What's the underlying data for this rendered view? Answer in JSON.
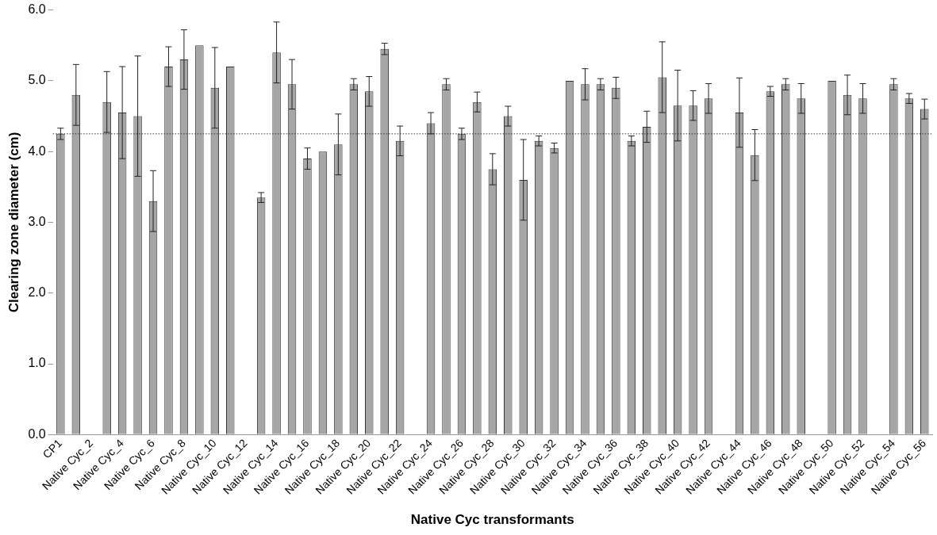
{
  "chart_data": {
    "type": "bar",
    "xlabel": "Native Cyc transformants",
    "ylabel": "Clearing zone diameter (cm)",
    "categories": [
      "CP1",
      null,
      "Native Cyc_2",
      null,
      "Native Cyc_4",
      null,
      "Native Cyc_6",
      null,
      "Native Cyc_8",
      null,
      "Native Cyc_10",
      null,
      "Native Cyc_12",
      null,
      "Native Cyc_14",
      null,
      "Native Cyc_16",
      null,
      "Native Cyc_18",
      null,
      "Native Cyc_20",
      null,
      "Native Cyc_22",
      null,
      "Native Cyc_24",
      null,
      "Native Cyc_26",
      null,
      "Native Cyc_28",
      null,
      "Native Cyc_30",
      null,
      "Native Cyc_32",
      null,
      "Native Cyc_34",
      null,
      "Native Cyc_36",
      null,
      "Native Cyc_38",
      null,
      "Native Cyc_40",
      null,
      "Native Cyc_42",
      null,
      "Native Cyc_44",
      null,
      "Native Cyc_46",
      null,
      "Native Cyc_48",
      null,
      "Native Cyc_50",
      null,
      "Native Cyc_52",
      null,
      "Native Cyc_54",
      null,
      "Native Cyc_56"
    ],
    "values": [
      4.25,
      4.8,
      0,
      4.7,
      4.55,
      4.5,
      3.3,
      5.2,
      5.3,
      5.5,
      4.9,
      5.2,
      0,
      3.35,
      5.4,
      4.95,
      3.9,
      4.0,
      4.1,
      4.95,
      4.85,
      5.45,
      4.15,
      0,
      4.4,
      4.95,
      4.25,
      4.7,
      3.75,
      4.5,
      3.6,
      4.15,
      4.05,
      5.0,
      4.95,
      4.95,
      4.9,
      4.15,
      4.35,
      5.05,
      4.65,
      4.65,
      4.75,
      0,
      4.55,
      3.95,
      4.85,
      4.95,
      4.75,
      0,
      5.0,
      4.8,
      4.75,
      0,
      4.95,
      4.75,
      4.6
    ],
    "errors": [
      0.08,
      0.43,
      null,
      0.43,
      0.65,
      0.85,
      0.43,
      0.28,
      0.42,
      null,
      0.57,
      null,
      null,
      0.07,
      0.43,
      0.35,
      0.15,
      null,
      0.43,
      0.08,
      0.21,
      0.08,
      0.21,
      null,
      0.15,
      0.08,
      0.08,
      0.14,
      0.22,
      0.14,
      0.57,
      0.07,
      0.07,
      null,
      0.22,
      0.08,
      0.15,
      0.07,
      0.22,
      0.5,
      0.5,
      0.21,
      0.21,
      null,
      0.49,
      0.36,
      0.07,
      0.08,
      0.21,
      null,
      null,
      0.28,
      0.21,
      null,
      0.08,
      0.07,
      0.14
    ],
    "color": "#a6a6a6",
    "ylim": [
      0,
      6
    ],
    "yticks": [
      {
        "value": 0,
        "label": "0.0"
      },
      {
        "value": 1,
        "label": "1.0"
      },
      {
        "value": 2,
        "label": "2.0"
      },
      {
        "value": 3,
        "label": "3.0"
      },
      {
        "value": 4,
        "label": "4.0"
      },
      {
        "value": 5,
        "label": "5.0"
      },
      {
        "value": 6,
        "label": "6.0"
      }
    ],
    "ref_lines": [
      {
        "axis": "y",
        "value": 4.25,
        "line_style": "dotted",
        "color": "#333333"
      }
    ],
    "grid": false,
    "legend": false
  }
}
